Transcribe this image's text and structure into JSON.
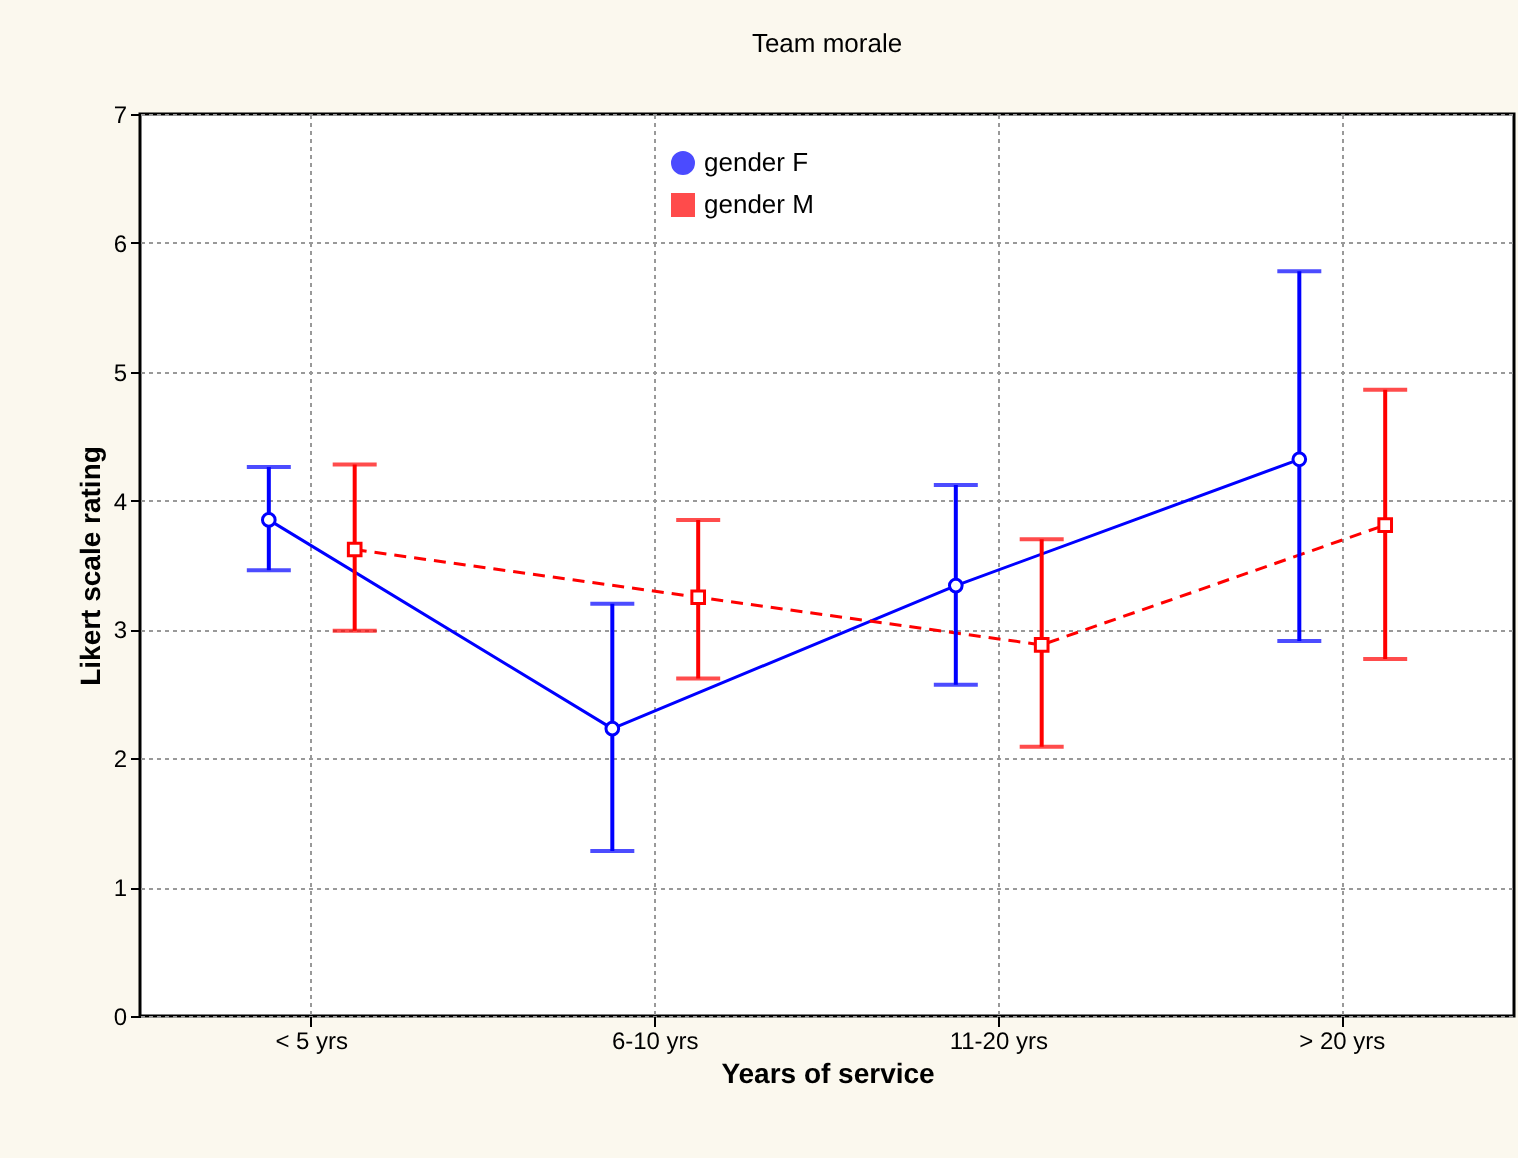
{
  "chart_data": {
    "type": "line",
    "title": "Team morale",
    "xlabel": "Years of service",
    "ylabel": "Likert scale rating",
    "categories": [
      "< 5 yrs",
      "6-10 yrs",
      "11-20 yrs",
      "> 20 yrs"
    ],
    "series": [
      {
        "name": "gender F",
        "color": "#0000ff",
        "marker": "circle",
        "line_style": "solid",
        "values": [
          3.85,
          2.23,
          3.34,
          4.32
        ],
        "errors": [
          [
            3.46,
            4.26
          ],
          [
            1.28,
            3.2
          ],
          [
            2.57,
            4.12
          ],
          [
            2.91,
            5.78
          ]
        ]
      },
      {
        "name": "gender M",
        "color": "#ff0000",
        "marker": "square",
        "line_style": "dashed",
        "values": [
          3.62,
          3.25,
          2.88,
          3.81
        ],
        "errors": [
          [
            2.99,
            4.28
          ],
          [
            2.62,
            3.85
          ],
          [
            2.09,
            3.7
          ],
          [
            2.77,
            4.86
          ]
        ]
      }
    ],
    "ylim": [
      0,
      7
    ],
    "yticks": [
      0,
      1,
      2,
      3,
      4,
      5,
      6,
      7
    ],
    "grid": true,
    "legend": "top"
  }
}
